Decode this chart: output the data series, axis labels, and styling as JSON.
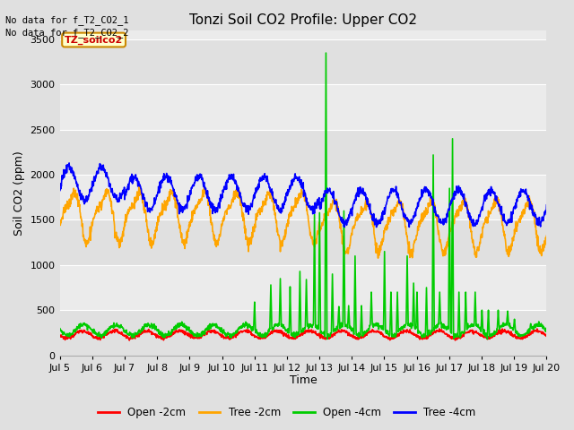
{
  "title": "Tonzi Soil CO2 Profile: Upper CO2",
  "ylabel": "Soil CO2 (ppm)",
  "xlabel": "Time",
  "annotations": [
    "No data for f_T2_CO2_1",
    "No data for f_T2_CO2_2"
  ],
  "legend_label": "TZ_soilco2",
  "legend_entries": [
    "Open -2cm",
    "Tree -2cm",
    "Open -4cm",
    "Tree -4cm"
  ],
  "legend_colors": [
    "#ff0000",
    "#ffa500",
    "#00cc00",
    "#0000ff"
  ],
  "ylim": [
    0,
    3600
  ],
  "yticks": [
    0,
    500,
    1000,
    1500,
    2000,
    2500,
    3000,
    3500
  ],
  "xtick_labels": [
    "Jul 5",
    "Jul 6",
    "Jul 7",
    "Jul 8",
    "Jul 9",
    "Jul 10",
    "Jul 11",
    "Jul 12",
    "Jul 13",
    "Jul 14",
    "Jul 15",
    "Jul 16",
    "Jul 17",
    "Jul 18",
    "Jul 19",
    "Jul 20"
  ],
  "bg_color": "#e0e0e0",
  "plot_bg_color": "#ebebeb",
  "band_colors": [
    "#e0e0e0",
    "#ebebeb"
  ],
  "grid_color": "#ffffff",
  "title_fontsize": 11,
  "axis_fontsize": 9,
  "tick_fontsize": 8,
  "linewidth": 1.2
}
